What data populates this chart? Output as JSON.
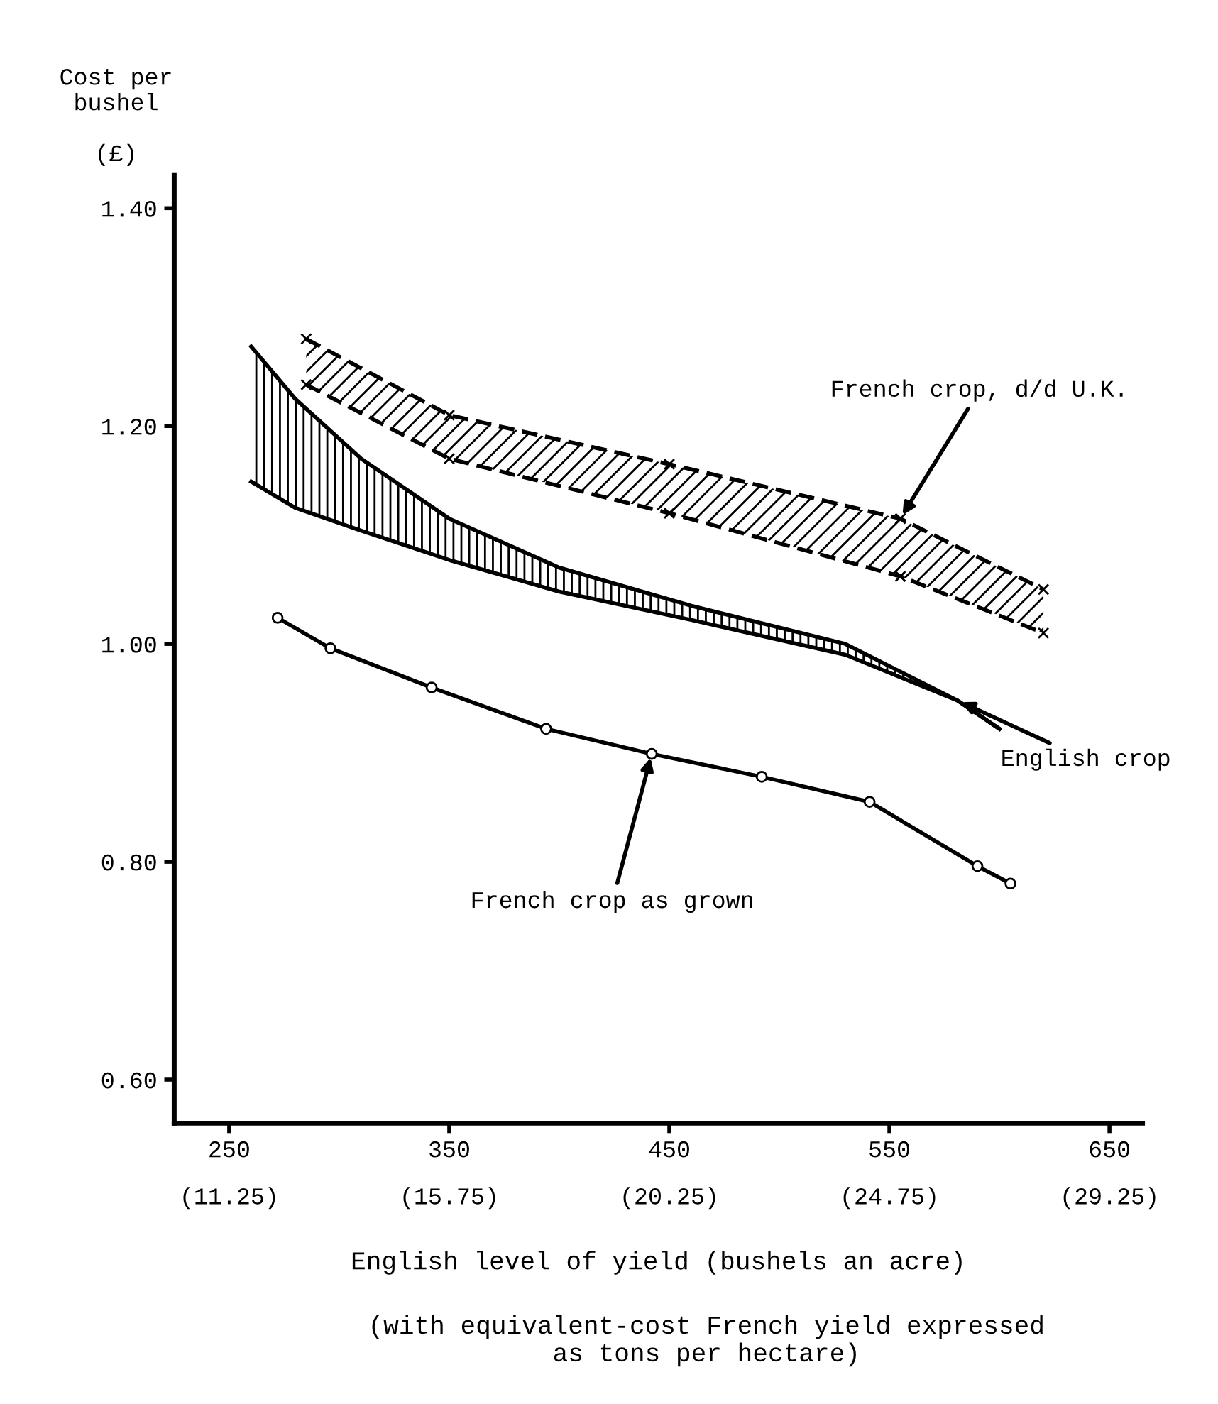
{
  "chart_data": {
    "type": "line",
    "ylabel": "Cost per\nbushel\n\n(£)",
    "xlabel": "English level of yield (bushels an acre)",
    "annotations": [
      "(with equivalent-cost French yield expressed\nas tons per hectare)",
      {
        "text": "French crop, d/d U.K.",
        "x": 555,
        "y": 1.115
      },
      {
        "text": "English crop",
        "x": 581,
        "y": 0.948
      },
      {
        "text": "French crop as grown",
        "x": 442,
        "y": 0.899
      }
    ],
    "xlim": [
      225,
      665
    ],
    "ylim": [
      0.56,
      1.43
    ],
    "xticks": [
      250,
      350,
      450,
      550,
      650
    ],
    "x2lim": [
      10.125,
      29.925
    ],
    "x2ticks": [
      {
        "value": 11.25,
        "label": "(11.25)"
      },
      {
        "value": 15.75,
        "label": "(15.75)"
      },
      {
        "value": 20.25,
        "label": "(20.25)"
      },
      {
        "value": 24.75,
        "label": "(24.75)"
      },
      {
        "value": 29.25,
        "label": "(29.25)"
      }
    ],
    "yticks": [
      {
        "value": 0.6,
        "label": "0.60"
      },
      {
        "value": 0.8,
        "label": "0.80"
      },
      {
        "value": 1.0,
        "label": "1.00"
      },
      {
        "value": 1.2,
        "label": "1.20"
      },
      {
        "value": 1.4,
        "label": "1.40"
      }
    ],
    "grid": false,
    "series": [
      {
        "type": "area",
        "color": "#000000",
        "line_style": "dashed",
        "marker": "cross",
        "x": [
          285,
          350,
          450,
          555,
          620
        ],
        "values": [
          1.28,
          1.21,
          1.165,
          1.115,
          1.05
        ]
      },
      {
        "color": "#000000",
        "line_style": "dashed",
        "marker": "cross",
        "x": [
          285,
          350,
          450,
          555,
          620
        ],
        "values": [
          1.238,
          1.17,
          1.12,
          1.062,
          1.01
        ]
      },
      {
        "type": "area",
        "color": "#000000",
        "line_style": "solid",
        "marker": "none",
        "x": [
          260,
          280,
          310,
          350,
          400,
          460,
          530,
          581,
          600
        ],
        "values": [
          1.273,
          1.225,
          1.17,
          1.115,
          1.07,
          1.035,
          1.0,
          0.948,
          0.922
        ]
      },
      {
        "color": "#000000",
        "line_style": "solid",
        "marker": "none",
        "x": [
          260,
          280,
          310,
          350,
          400,
          460,
          530,
          581,
          600
        ],
        "values": [
          1.149,
          1.125,
          1.104,
          1.077,
          1.048,
          1.022,
          0.99,
          0.948,
          0.922
        ]
      },
      {
        "color": "#000000",
        "line_style": "solid",
        "marker": "circle",
        "x": [
          272,
          296,
          342,
          394,
          442,
          492,
          541,
          590,
          605
        ],
        "values": [
          1.024,
          0.996,
          0.96,
          0.922,
          0.899,
          0.878,
          0.855,
          0.796,
          0.78
        ]
      }
    ]
  }
}
